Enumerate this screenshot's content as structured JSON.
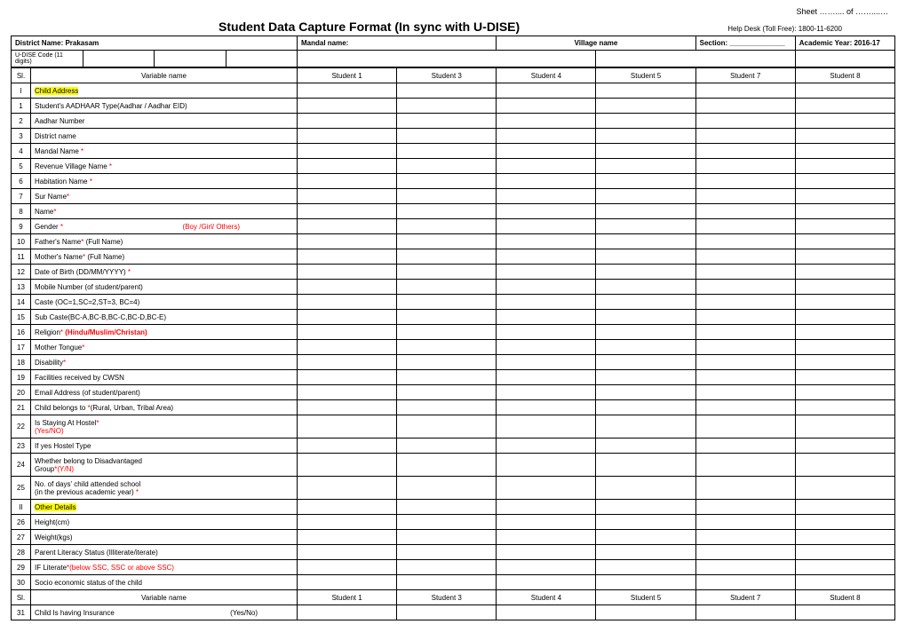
{
  "sheet_label_prefix": "Sheet ",
  "sheet_label_mid": "…….... of ",
  "sheet_label_suffix": "……....…",
  "title": "Student Data Capture Format (In sync with U-DISE)",
  "helpdesk": "Help Desk (Toll Free): 1800-11-6200",
  "meta": {
    "district_label": "District Name: Prakasam",
    "mandal_label": "Mandal name:",
    "village_label": "Village name",
    "section_label": "Section: ______________",
    "academic_label": "Academic Year: 2016-17",
    "udise_label": "U-DISE Code (11 digits)"
  },
  "headers": {
    "sl": "Sl.",
    "varname": "Variable name",
    "students": [
      "Student 1",
      "Student 3",
      "Student 4",
      "Student 5",
      "Student 7",
      "Student 8"
    ]
  },
  "sections": {
    "s1_num": "I",
    "s1_label": "Child Address",
    "s2_num": "II",
    "s2_label": "Other Details"
  },
  "rows": [
    {
      "n": "1",
      "text": "Student's AADHAAR Type(Aadhar / Aadhar EID)"
    },
    {
      "n": "2",
      "text": "Aadhar Number"
    },
    {
      "n": "3",
      "text": "District name"
    },
    {
      "n": "4",
      "text": "Mandal Name ",
      "star": "*"
    },
    {
      "n": "5",
      "text": "Revenue Village Name ",
      "star": "*"
    },
    {
      "n": "6",
      "text": "Habitation Name ",
      "star": "*"
    },
    {
      "n": "7",
      "text": "Sur Name",
      "star": "*"
    },
    {
      "n": "8",
      "text": "Name",
      "star": "*"
    },
    {
      "n": "9",
      "text": "Gender ",
      "star": "*",
      "hint": "(Boy /Girl/ Others)"
    },
    {
      "n": "10",
      "text": "Father's Name",
      "star": "*",
      "suffix": " (Full Name)"
    },
    {
      "n": "11",
      "text": "Mother's Name",
      "star": "*",
      "suffix": " (Full Name)"
    },
    {
      "n": "12",
      "text": "Date of Birth (DD/MM/YYYY) ",
      "star": "*"
    },
    {
      "n": "13",
      "text": "Mobile Number (of student/parent)"
    },
    {
      "n": "14",
      "text": "Caste (OC=1,SC=2,ST=3, BC=4)"
    },
    {
      "n": "15",
      "text": "Sub Caste(BC-A,BC-B,BC-C,BC-D,BC-E)"
    },
    {
      "n": "16",
      "text": "Religion",
      "star": "*",
      "hint_bold": " (Hindu/Muslim/Christan)"
    },
    {
      "n": "17",
      "text": "Mother Tongue",
      "star": "*"
    },
    {
      "n": "18",
      "text": "Disability",
      "star": "*"
    },
    {
      "n": "19",
      "text": "Facilities received by CWSN"
    },
    {
      "n": "20",
      "text": "Email Address (of student/parent)"
    },
    {
      "n": "21",
      "text": "Child belongs to ",
      "star": "*",
      "suffix": "(Rural, Urban, Tribal Area)"
    },
    {
      "n": "22",
      "line1": "Is Staying At Hostel",
      "star": "*",
      "line2_red": "(Yes/NO)"
    },
    {
      "n": "23",
      "text": "If yes Hostel Type"
    },
    {
      "n": "24",
      "line1": "Whether belong to Disadvantaged",
      "line2": "Group",
      "star": "*",
      "line2_red": "(Y/N)"
    },
    {
      "n": "25",
      "line1": "No. of days' child attended school",
      "line2": "(in the previous academic year) ",
      "star": "*"
    }
  ],
  "rows2": [
    {
      "n": "26",
      "text": "Height(cm)"
    },
    {
      "n": "27",
      "text": "Weight(kgs)"
    },
    {
      "n": "28",
      "text": "Parent Literacy Status (Illiterate/iterate)"
    },
    {
      "n": "29",
      "text": "IF Literate",
      "star": "*",
      "hint_red": "(below SSC, SSC or above SSC)"
    },
    {
      "n": "30",
      "text": "Socio economic status of the child"
    }
  ],
  "row31": {
    "n": "31",
    "text": "Child Is having Insurance",
    "right": "(Yes/No)"
  }
}
